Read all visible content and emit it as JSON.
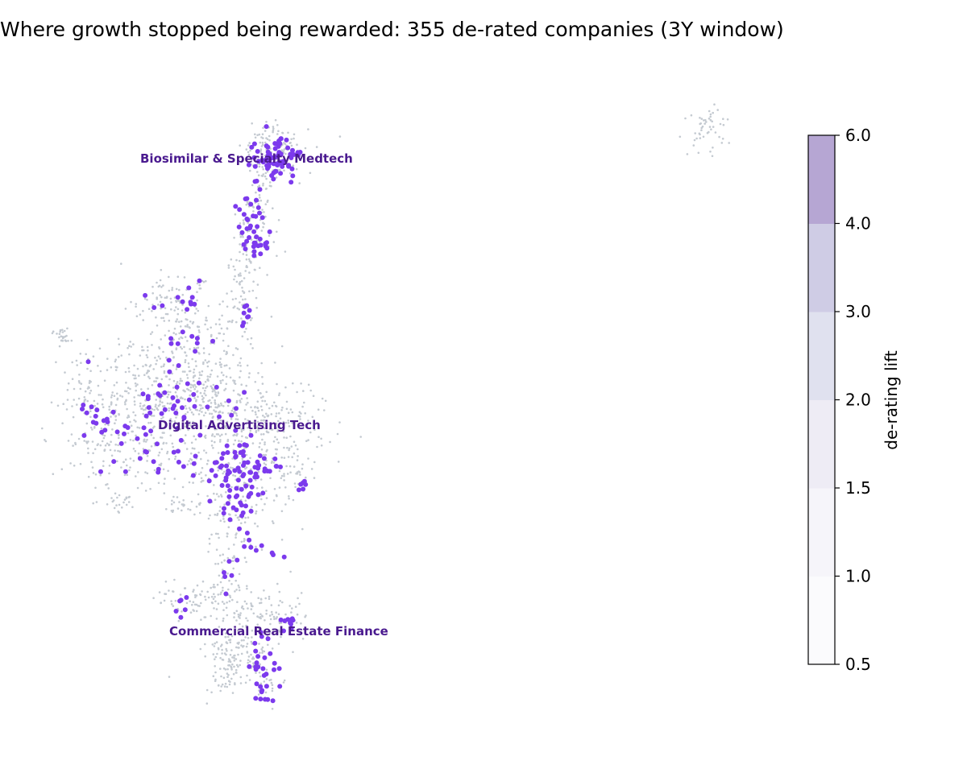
{
  "chart_data": {
    "type": "scatter",
    "title": "Where growth stopped being rewarded: 355 de-rated companies (3Y window)",
    "highlight_color": "#7c3aed",
    "background_point_color": "#c4cad1",
    "region_labels": [
      {
        "text": "Biosimilar & Specialty Medtech"
      },
      {
        "text": "Digital Advertising Tech"
      },
      {
        "text": "Commercial Real Estate Finance"
      }
    ],
    "colorbar": {
      "label": "de-rating lift",
      "boundaries": [
        0.5,
        1.0,
        1.5,
        2.0,
        3.0,
        4.0,
        6.0
      ],
      "tick_labels": [
        "0.5",
        "1.0",
        "1.5",
        "2.0",
        "3.0",
        "4.0",
        "6.0"
      ],
      "band_colors": [
        "#fbfbfd",
        "#f6f5fa",
        "#eeecf5",
        "#e0e1ef",
        "#cfcce5",
        "#b6a6d3"
      ]
    }
  }
}
